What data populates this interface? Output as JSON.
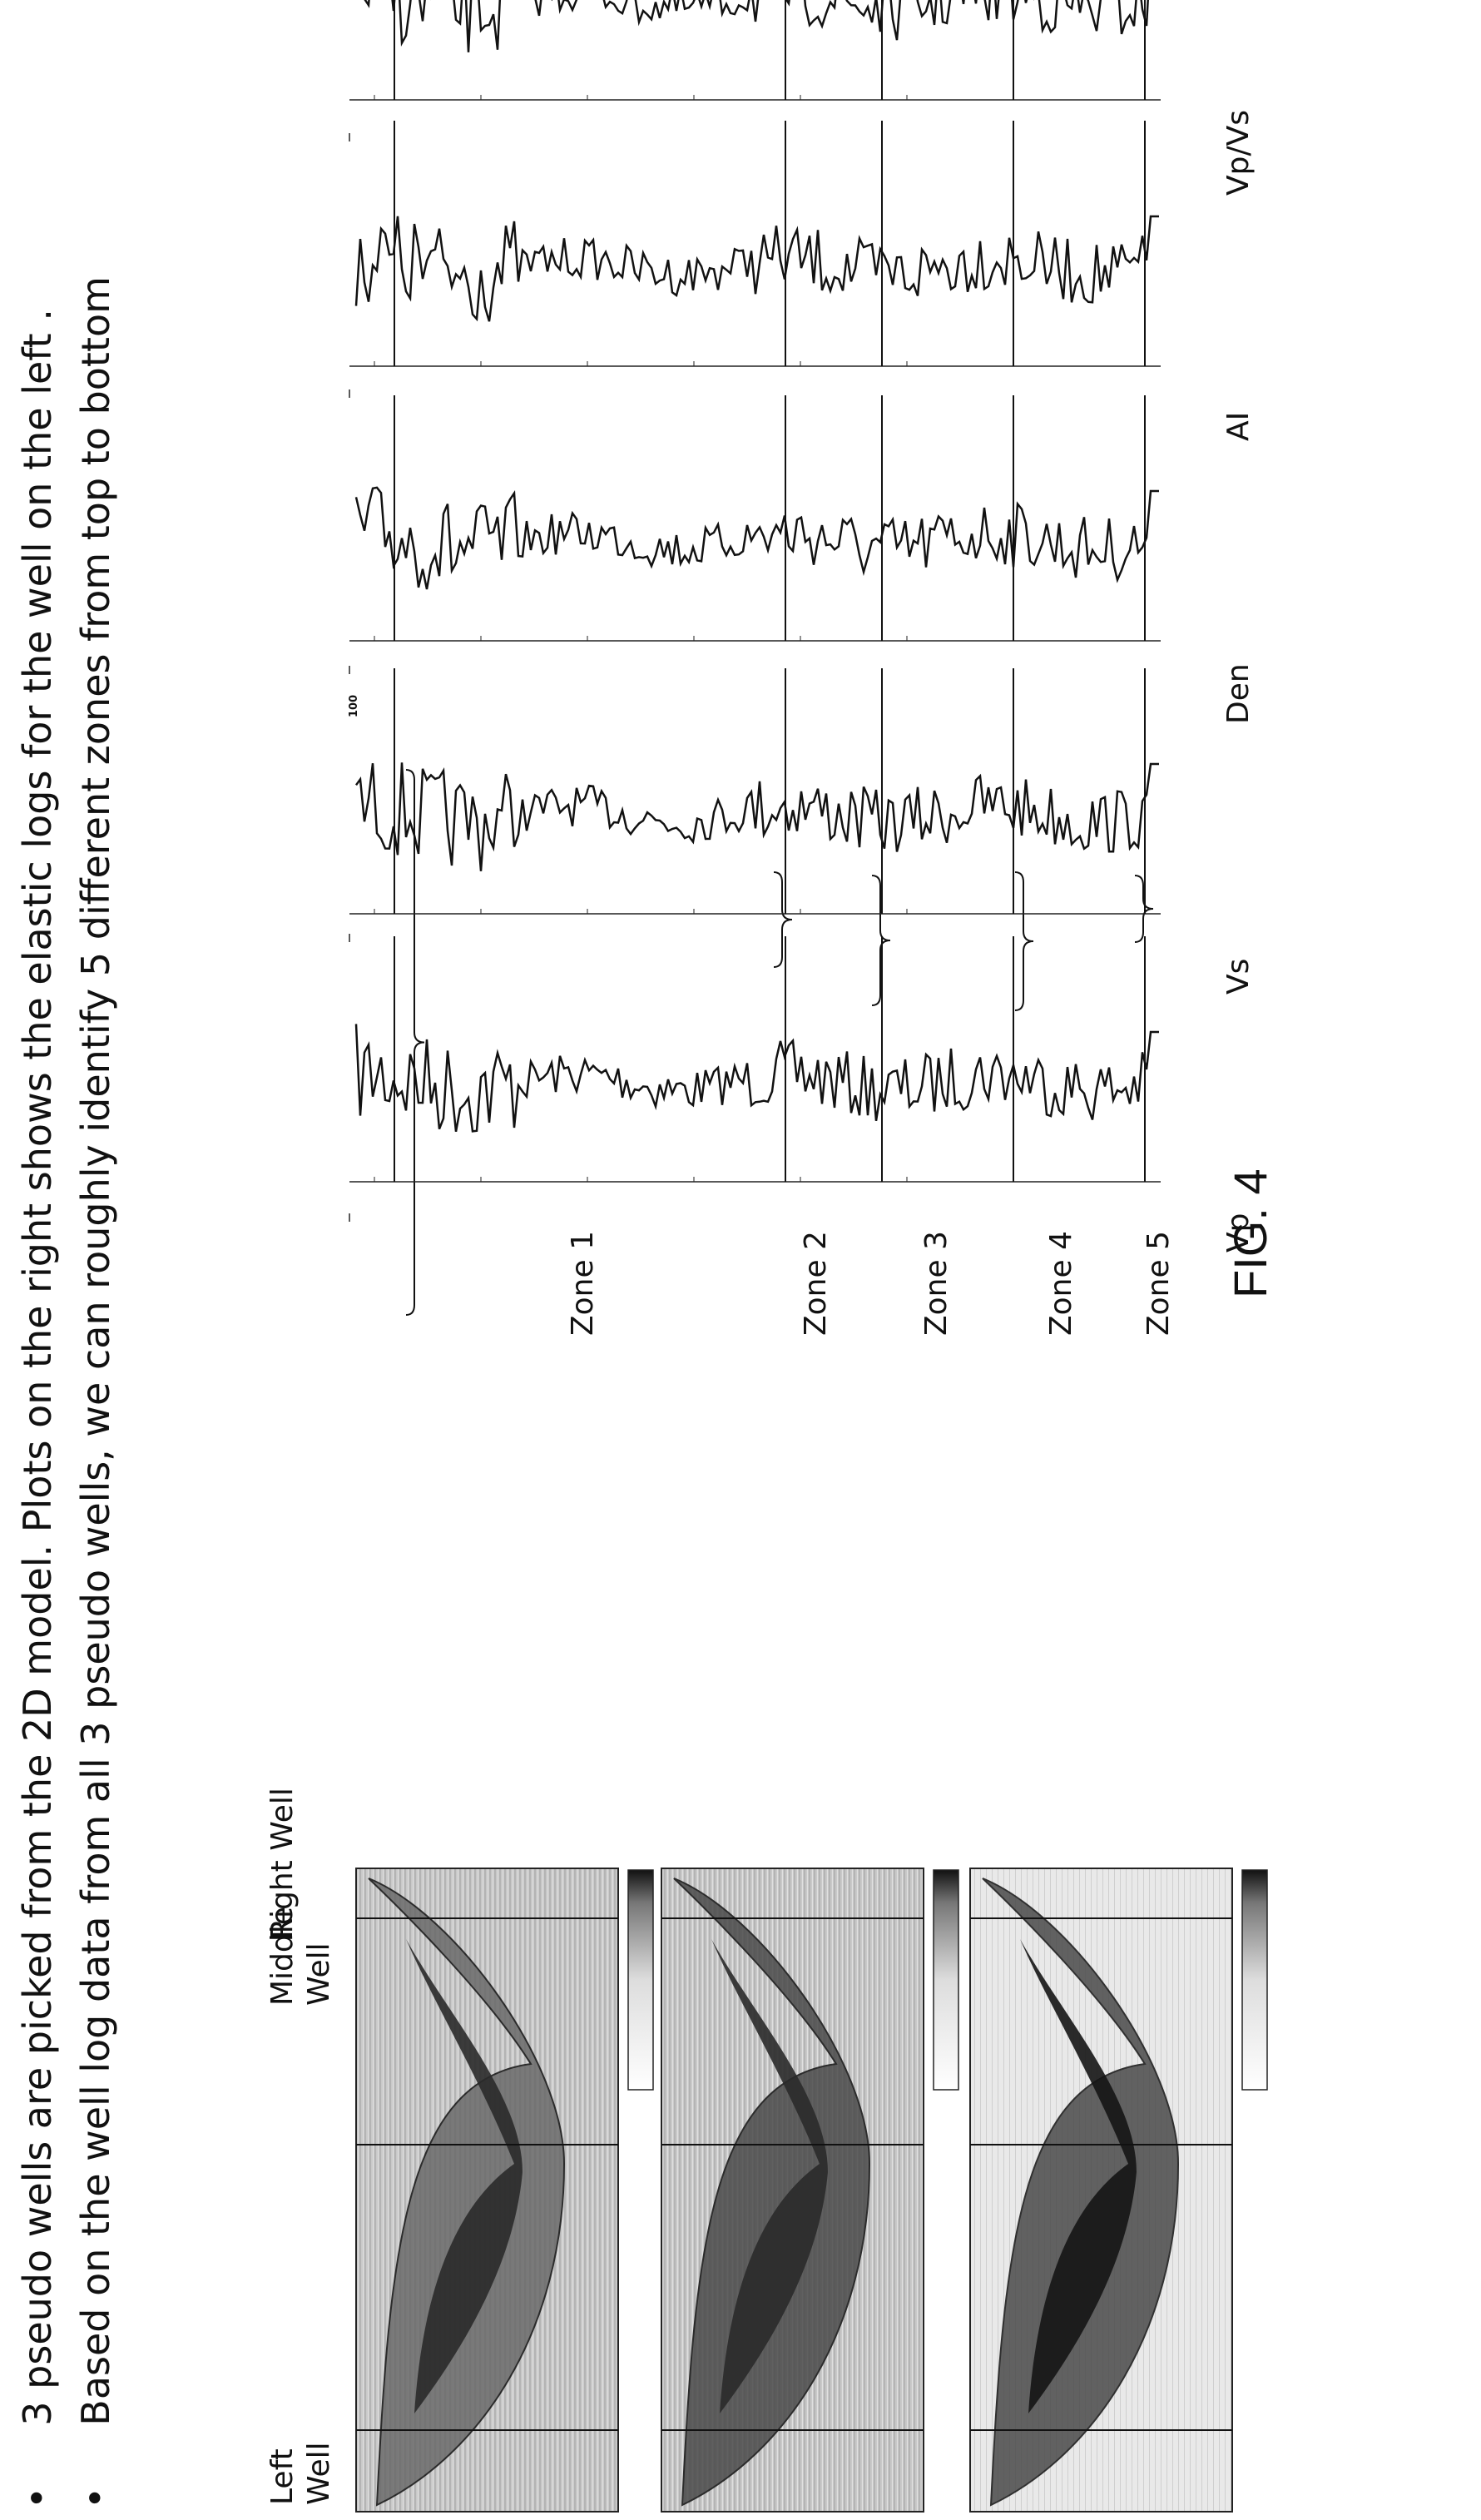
{
  "bullets": [
    {
      "marker": "•",
      "text": "3 pseudo wells are picked from the 2D model. Plots on the right shows the elastic logs for the well on the left ."
    },
    {
      "marker": "•",
      "text": "Based on the well log data from all 3 pseudo wells, we can roughly identify 5 different zones from top to bottom"
    }
  ],
  "wells": {
    "left": [
      "Left",
      "Well"
    ],
    "middle": [
      "Middle",
      "Well"
    ],
    "right": [
      "Right Well"
    ]
  },
  "zones": [
    "Zone 1",
    "Zone 2",
    "Zone 3",
    "Zone 4",
    "Zone 5"
  ],
  "logs": [
    "Vp",
    "Vs",
    "Den",
    "AI",
    "Vp/Vs"
  ],
  "den_tick": "100",
  "figure_label": "FIG. 4"
}
